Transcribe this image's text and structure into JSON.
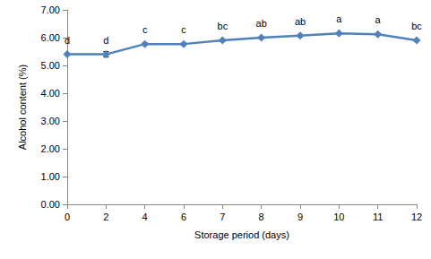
{
  "chart_data": {
    "type": "line",
    "x_label": "Storage period (days)",
    "y_label": "Alcohol content (%)",
    "categories": [
      "0",
      "2",
      "4",
      "6",
      "7",
      "8",
      "9",
      "10",
      "11",
      "12"
    ],
    "values": [
      5.4,
      5.4,
      5.77,
      5.77,
      5.9,
      6.0,
      6.07,
      6.15,
      6.12,
      5.9
    ],
    "errors": [
      0.02,
      0.1,
      0.04,
      0.03,
      0.03,
      0.03,
      0.03,
      0.03,
      0.03,
      0.03
    ],
    "annotations": [
      "d",
      "d",
      "c",
      "c",
      "bc",
      "ab",
      "ab",
      "a",
      "a",
      "bc"
    ],
    "color": "#4f81bd",
    "marker": "diamond",
    "ylim": [
      0,
      7
    ],
    "yticks": [
      {
        "value": 0,
        "label": "0.00"
      },
      {
        "value": 1,
        "label": "1.00"
      },
      {
        "value": 2,
        "label": "2.00"
      },
      {
        "value": 3,
        "label": "3.00"
      },
      {
        "value": 4,
        "label": "4.00"
      },
      {
        "value": 5,
        "label": "5.00"
      },
      {
        "value": 6,
        "label": "6.00"
      },
      {
        "value": 7,
        "label": "7.00"
      }
    ],
    "grid": false
  }
}
